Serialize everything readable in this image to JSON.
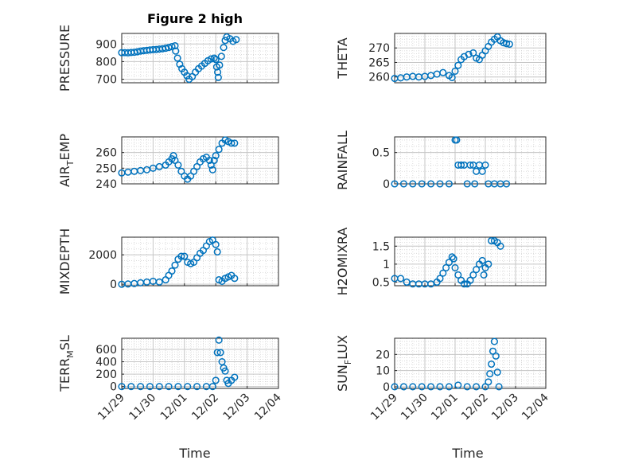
{
  "figure": {
    "title": "Figure 2 high"
  },
  "xlabel": "Time",
  "x_ticks": [
    "11/29",
    "11/30",
    "12/01",
    "12/02",
    "12/03",
    "12/04"
  ],
  "marker_color": "#0072BD",
  "chart_data": [
    {
      "type": "scatter",
      "ylabel": "PRESSURE",
      "ylim": [
        680,
        960
      ],
      "yticks": [
        700,
        800,
        900
      ],
      "grid": true,
      "minor_grid": true,
      "xlim": [
        "11/29",
        "12/04"
      ],
      "points": [
        [
          0.0,
          851
        ],
        [
          0.1,
          851
        ],
        [
          0.2,
          850
        ],
        [
          0.3,
          852
        ],
        [
          0.4,
          853
        ],
        [
          0.5,
          856
        ],
        [
          0.6,
          860
        ],
        [
          0.7,
          862
        ],
        [
          0.8,
          864
        ],
        [
          0.9,
          866
        ],
        [
          1.0,
          868
        ],
        [
          1.1,
          869
        ],
        [
          1.2,
          871
        ],
        [
          1.3,
          873
        ],
        [
          1.4,
          876
        ],
        [
          1.5,
          880
        ],
        [
          1.6,
          885
        ],
        [
          1.7,
          890
        ],
        [
          1.72,
          860
        ],
        [
          1.78,
          820
        ],
        [
          1.85,
          785
        ],
        [
          1.92,
          760
        ],
        [
          2.0,
          740
        ],
        [
          2.08,
          720
        ],
        [
          2.15,
          700
        ],
        [
          2.25,
          715
        ],
        [
          2.35,
          740
        ],
        [
          2.45,
          760
        ],
        [
          2.55,
          775
        ],
        [
          2.65,
          790
        ],
        [
          2.75,
          805
        ],
        [
          2.85,
          815
        ],
        [
          2.95,
          820
        ],
        [
          3.0,
          812
        ],
        [
          3.03,
          770
        ],
        [
          3.06,
          740
        ],
        [
          3.08,
          710
        ],
        [
          3.12,
          780
        ],
        [
          3.18,
          830
        ],
        [
          3.25,
          880
        ],
        [
          3.3,
          920
        ],
        [
          3.35,
          940
        ],
        [
          3.45,
          930
        ],
        [
          3.55,
          915
        ],
        [
          3.65,
          925
        ]
      ]
    },
    {
      "type": "scatter",
      "ylabel": "THETA",
      "ylim": [
        258,
        275
      ],
      "yticks": [
        260,
        265,
        270
      ],
      "grid": true,
      "minor_grid": true,
      "xlim": [
        "11/29",
        "12/04"
      ],
      "points": [
        [
          0.0,
          259.5
        ],
        [
          0.2,
          259.7
        ],
        [
          0.4,
          260.0
        ],
        [
          0.6,
          260.2
        ],
        [
          0.8,
          260.0
        ],
        [
          1.0,
          260.2
        ],
        [
          1.2,
          260.5
        ],
        [
          1.4,
          261.0
        ],
        [
          1.6,
          261.5
        ],
        [
          1.8,
          260.5
        ],
        [
          1.9,
          259.8
        ],
        [
          2.0,
          262.0
        ],
        [
          2.1,
          264.0
        ],
        [
          2.2,
          266.0
        ],
        [
          2.3,
          267.0
        ],
        [
          2.45,
          267.8
        ],
        [
          2.6,
          268.3
        ],
        [
          2.7,
          266.5
        ],
        [
          2.8,
          266.0
        ],
        [
          2.9,
          267.5
        ],
        [
          3.0,
          269.0
        ],
        [
          3.1,
          270.5
        ],
        [
          3.2,
          272.0
        ],
        [
          3.3,
          273.0
        ],
        [
          3.4,
          273.8
        ],
        [
          3.5,
          272.5
        ],
        [
          3.6,
          271.8
        ],
        [
          3.7,
          271.5
        ],
        [
          3.8,
          271.3
        ]
      ]
    },
    {
      "type": "scatter",
      "ylabel": "AIR_TEMP",
      "ylim": [
        240,
        270
      ],
      "yticks": [
        240,
        250,
        260
      ],
      "grid": true,
      "minor_grid": true,
      "xlim": [
        "11/29",
        "12/04"
      ],
      "points": [
        [
          0.0,
          247
        ],
        [
          0.2,
          247.5
        ],
        [
          0.4,
          248
        ],
        [
          0.6,
          248.5
        ],
        [
          0.8,
          249
        ],
        [
          1.0,
          250
        ],
        [
          1.2,
          251
        ],
        [
          1.4,
          252
        ],
        [
          1.5,
          254
        ],
        [
          1.6,
          256
        ],
        [
          1.65,
          258
        ],
        [
          1.7,
          255
        ],
        [
          1.8,
          252
        ],
        [
          1.9,
          248
        ],
        [
          2.0,
          245
        ],
        [
          2.1,
          243
        ],
        [
          2.2,
          245
        ],
        [
          2.3,
          248
        ],
        [
          2.4,
          251
        ],
        [
          2.5,
          254
        ],
        [
          2.6,
          256
        ],
        [
          2.7,
          257
        ],
        [
          2.8,
          255
        ],
        [
          2.85,
          252
        ],
        [
          2.9,
          249
        ],
        [
          2.95,
          255
        ],
        [
          3.0,
          258
        ],
        [
          3.1,
          262
        ],
        [
          3.2,
          266
        ],
        [
          3.3,
          268
        ],
        [
          3.4,
          267
        ],
        [
          3.5,
          266
        ],
        [
          3.6,
          266
        ]
      ]
    },
    {
      "type": "scatter",
      "ylabel": "RAINFALL",
      "ylim": [
        0,
        0.75
      ],
      "yticks": [
        0,
        0.5
      ],
      "grid": true,
      "minor_grid": true,
      "xlim": [
        "11/29",
        "12/04"
      ],
      "points": [
        [
          0.0,
          0
        ],
        [
          0.3,
          0
        ],
        [
          0.6,
          0
        ],
        [
          0.9,
          0
        ],
        [
          1.2,
          0
        ],
        [
          1.5,
          0
        ],
        [
          1.8,
          0
        ],
        [
          2.0,
          0.7
        ],
        [
          2.05,
          0.7
        ],
        [
          2.1,
          0.3
        ],
        [
          2.2,
          0.3
        ],
        [
          2.3,
          0.3
        ],
        [
          2.4,
          0
        ],
        [
          2.5,
          0.3
        ],
        [
          2.6,
          0.3
        ],
        [
          2.65,
          0
        ],
        [
          2.7,
          0.2
        ],
        [
          2.8,
          0.3
        ],
        [
          2.9,
          0.2
        ],
        [
          3.0,
          0.3
        ],
        [
          3.1,
          0
        ],
        [
          3.3,
          0
        ],
        [
          3.5,
          0
        ],
        [
          3.7,
          0
        ]
      ]
    },
    {
      "type": "scatter",
      "ylabel": "MIXDEPTH",
      "ylim": [
        -100,
        3200
      ],
      "yticks": [
        0,
        2000
      ],
      "grid": true,
      "minor_grid": true,
      "xlim": [
        "11/29",
        "12/04"
      ],
      "points": [
        [
          0.0,
          0
        ],
        [
          0.2,
          20
        ],
        [
          0.4,
          50
        ],
        [
          0.6,
          100
        ],
        [
          0.8,
          150
        ],
        [
          1.0,
          200
        ],
        [
          1.2,
          150
        ],
        [
          1.4,
          300
        ],
        [
          1.5,
          600
        ],
        [
          1.6,
          900
        ],
        [
          1.7,
          1300
        ],
        [
          1.8,
          1700
        ],
        [
          1.9,
          1900
        ],
        [
          2.0,
          1900
        ],
        [
          2.1,
          1500
        ],
        [
          2.2,
          1400
        ],
        [
          2.3,
          1500
        ],
        [
          2.4,
          1800
        ],
        [
          2.5,
          2100
        ],
        [
          2.6,
          2300
        ],
        [
          2.7,
          2600
        ],
        [
          2.8,
          2900
        ],
        [
          2.9,
          3000
        ],
        [
          3.0,
          2700
        ],
        [
          3.05,
          2200
        ],
        [
          3.1,
          300
        ],
        [
          3.2,
          200
        ],
        [
          3.3,
          400
        ],
        [
          3.4,
          500
        ],
        [
          3.5,
          600
        ],
        [
          3.6,
          400
        ]
      ]
    },
    {
      "type": "scatter",
      "ylabel": "H2OMIXRA",
      "ylim": [
        0.4,
        1.75
      ],
      "yticks": [
        0.5,
        1,
        1.5
      ],
      "grid": true,
      "minor_grid": true,
      "xlim": [
        "11/29",
        "12/04"
      ],
      "points": [
        [
          0.0,
          0.6
        ],
        [
          0.2,
          0.6
        ],
        [
          0.4,
          0.5
        ],
        [
          0.6,
          0.45
        ],
        [
          0.8,
          0.45
        ],
        [
          1.0,
          0.45
        ],
        [
          1.2,
          0.45
        ],
        [
          1.4,
          0.5
        ],
        [
          1.5,
          0.6
        ],
        [
          1.6,
          0.75
        ],
        [
          1.7,
          0.9
        ],
        [
          1.8,
          1.05
        ],
        [
          1.9,
          1.2
        ],
        [
          1.95,
          1.15
        ],
        [
          2.0,
          0.9
        ],
        [
          2.1,
          0.7
        ],
        [
          2.2,
          0.55
        ],
        [
          2.3,
          0.45
        ],
        [
          2.4,
          0.45
        ],
        [
          2.5,
          0.55
        ],
        [
          2.6,
          0.7
        ],
        [
          2.7,
          0.85
        ],
        [
          2.8,
          1.0
        ],
        [
          2.9,
          1.1
        ],
        [
          2.95,
          0.7
        ],
        [
          3.0,
          0.9
        ],
        [
          3.1,
          1.0
        ],
        [
          3.2,
          1.65
        ],
        [
          3.3,
          1.65
        ],
        [
          3.4,
          1.6
        ],
        [
          3.5,
          1.5
        ]
      ]
    },
    {
      "type": "scatter",
      "ylabel": "TERR_MSL",
      "ylim": [
        -30,
        780
      ],
      "yticks": [
        0,
        200,
        400,
        600
      ],
      "grid": true,
      "minor_grid": true,
      "xlim": [
        "11/29",
        "12/04"
      ],
      "points": [
        [
          0.0,
          0
        ],
        [
          0.3,
          0
        ],
        [
          0.6,
          0
        ],
        [
          0.9,
          0
        ],
        [
          1.2,
          0
        ],
        [
          1.5,
          0
        ],
        [
          1.8,
          0
        ],
        [
          2.1,
          0
        ],
        [
          2.4,
          0
        ],
        [
          2.7,
          0
        ],
        [
          2.9,
          0
        ],
        [
          3.0,
          100
        ],
        [
          3.05,
          550
        ],
        [
          3.1,
          750
        ],
        [
          3.15,
          550
        ],
        [
          3.2,
          400
        ],
        [
          3.25,
          300
        ],
        [
          3.3,
          250
        ],
        [
          3.35,
          100
        ],
        [
          3.4,
          50
        ],
        [
          3.5,
          100
        ],
        [
          3.6,
          150
        ]
      ]
    },
    {
      "type": "scatter",
      "ylabel": "SUN_FLUX",
      "ylim": [
        -1,
        30
      ],
      "yticks": [
        0,
        10,
        20
      ],
      "grid": true,
      "minor_grid": true,
      "xlim": [
        "11/29",
        "12/04"
      ],
      "points": [
        [
          0.0,
          0
        ],
        [
          0.3,
          0
        ],
        [
          0.6,
          0
        ],
        [
          0.9,
          0
        ],
        [
          1.2,
          0
        ],
        [
          1.5,
          0
        ],
        [
          1.8,
          0
        ],
        [
          2.1,
          1
        ],
        [
          2.4,
          0
        ],
        [
          2.7,
          0
        ],
        [
          3.0,
          0
        ],
        [
          3.1,
          3
        ],
        [
          3.15,
          8
        ],
        [
          3.2,
          14
        ],
        [
          3.25,
          22
        ],
        [
          3.3,
          28
        ],
        [
          3.35,
          19
        ],
        [
          3.4,
          9
        ],
        [
          3.45,
          0
        ]
      ]
    }
  ]
}
